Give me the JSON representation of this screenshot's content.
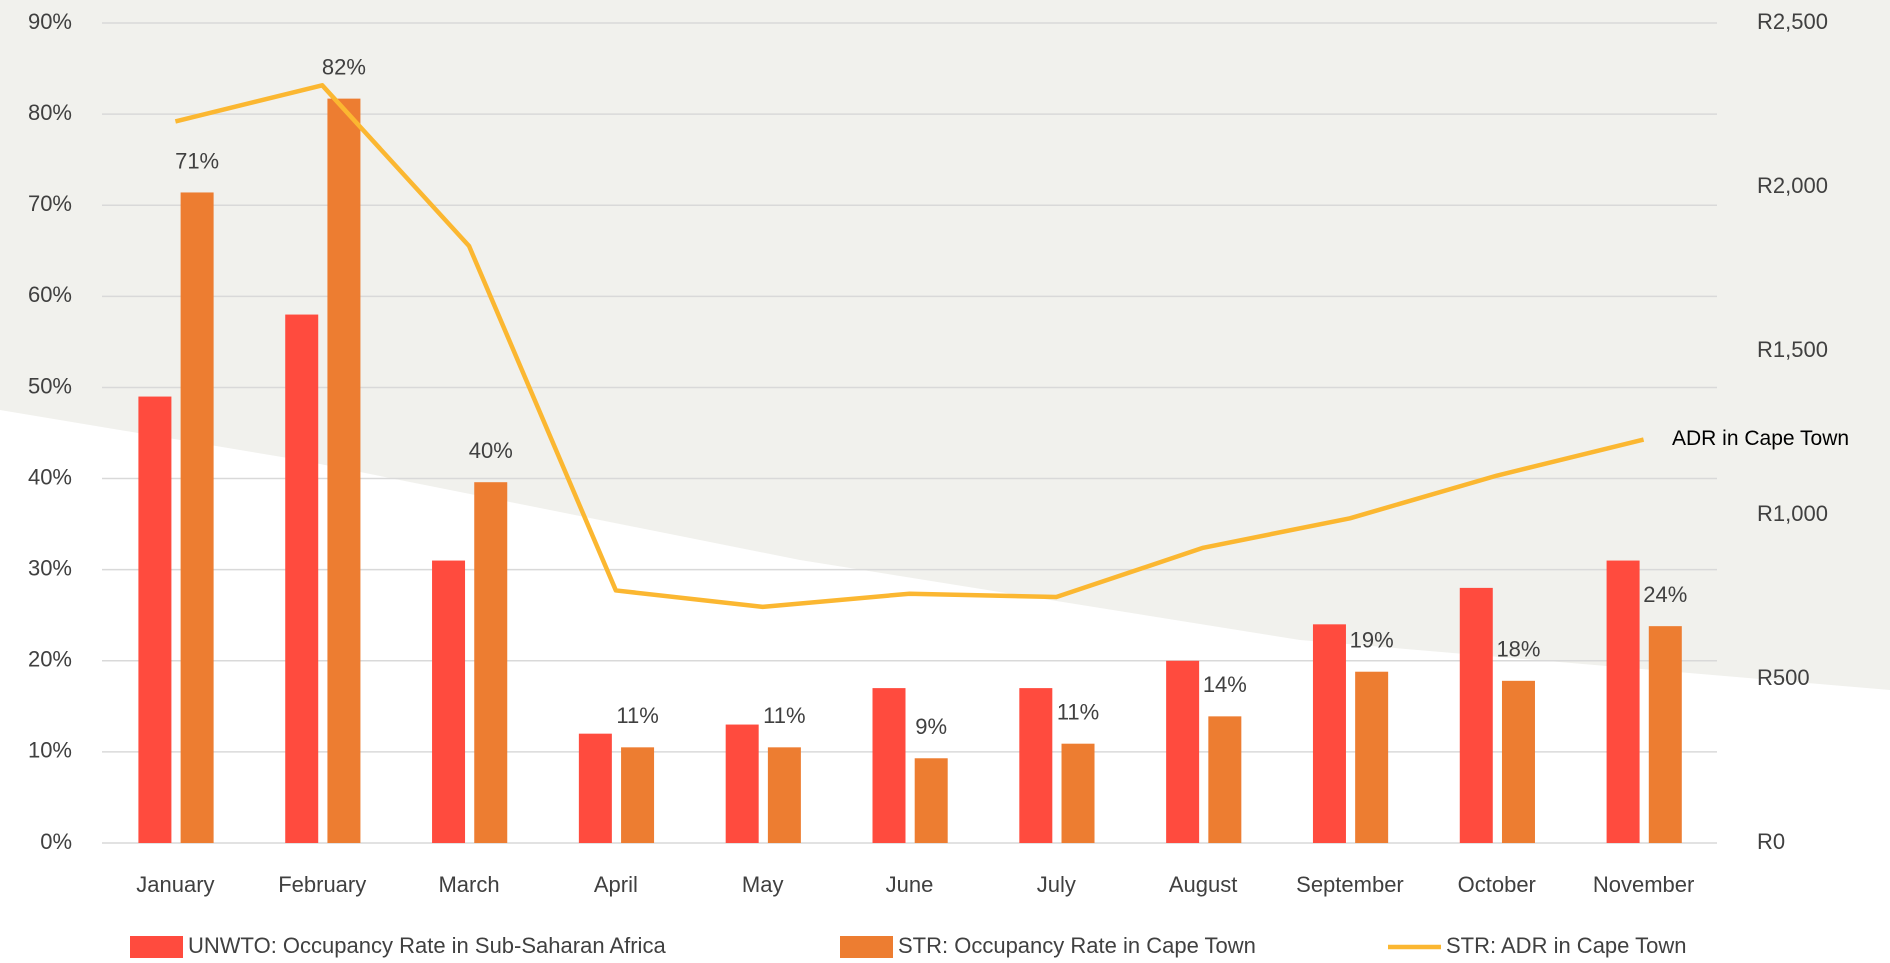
{
  "chart_data": {
    "type": "bar",
    "categories": [
      "January",
      "February",
      "March",
      "April",
      "May",
      "June",
      "July",
      "August",
      "September",
      "October",
      "November"
    ],
    "series": [
      {
        "name": "UNWTO: Occupancy Rate in Sub-Saharan Africa",
        "color": "#ff4b3e",
        "values": [
          49,
          58,
          31,
          12,
          13,
          17,
          17,
          20,
          24,
          28,
          31
        ]
      },
      {
        "name": "STR: Occupancy Rate in Cape Town",
        "color": "#ed7d31",
        "values": [
          71.4,
          81.7,
          39.6,
          10.5,
          10.5,
          9.3,
          10.9,
          13.9,
          18.8,
          17.8,
          23.8
        ],
        "value_labels": [
          "71%",
          "82%",
          "40%",
          "11%",
          "11%",
          "9%",
          "11%",
          "14%",
          "19%",
          "18%",
          "24%"
        ]
      },
      {
        "name": "STR: ADR in Cape Town",
        "color": "#fbb731",
        "type": "line",
        "axis": "y2",
        "values": [
          2200,
          2310,
          1820,
          770,
          720,
          760,
          750,
          900,
          990,
          1120,
          1230
        ]
      }
    ],
    "annotation": "ADR in Cape Town",
    "ylim": [
      0,
      90
    ],
    "yticks": [
      {
        "value": 0,
        "label": "0%"
      },
      {
        "value": 10,
        "label": "10%"
      },
      {
        "value": 20,
        "label": "20%"
      },
      {
        "value": 30,
        "label": "30%"
      },
      {
        "value": 40,
        "label": "40%"
      },
      {
        "value": 50,
        "label": "50%"
      },
      {
        "value": 60,
        "label": "60%"
      },
      {
        "value": 70,
        "label": "70%"
      },
      {
        "value": 80,
        "label": "80%"
      },
      {
        "value": 90,
        "label": "90%"
      }
    ],
    "y2lim": [
      0,
      2500
    ],
    "y2ticks": [
      {
        "value": 0,
        "label": "R0"
      },
      {
        "value": 500,
        "label": "R500"
      },
      {
        "value": 1000,
        "label": "R1,000"
      },
      {
        "value": 1500,
        "label": "R1,500"
      },
      {
        "value": 2000,
        "label": "R2,000"
      },
      {
        "value": 2500,
        "label": "R2,500"
      }
    ],
    "grid": true,
    "legend": "bottom"
  }
}
